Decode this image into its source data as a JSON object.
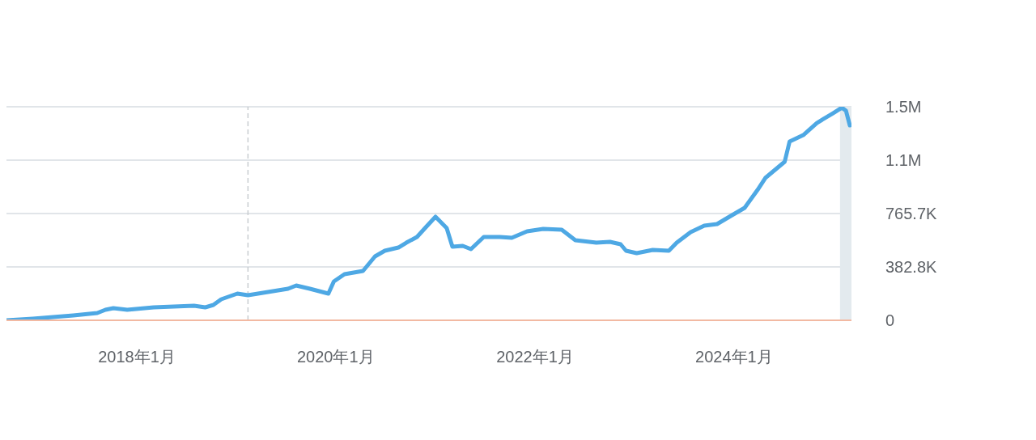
{
  "chart_data": {
    "type": "line",
    "x": [
      "2016-09-10",
      "2016-12-16",
      "2017-05-13",
      "2017-08-09",
      "2017-09-08",
      "2017-10-07",
      "2017-11-27",
      "2018-03-04",
      "2018-07-30",
      "2018-09-09",
      "2018-10-09",
      "2018-11-07",
      "2019-01-05",
      "2019-02-13",
      "2019-07-10",
      "2019-08-09",
      "2019-09-28",
      "2019-12-05",
      "2019-12-25",
      "2020-02-02",
      "2020-04-10",
      "2020-05-24",
      "2020-06-29",
      "2020-08-18",
      "2020-09-16",
      "2020-10-25",
      "2020-11-29",
      "2021-01-01",
      "2021-02-11",
      "2021-03-04",
      "2021-04-11",
      "2021-05-11",
      "2021-06-27",
      "2021-08-25",
      "2021-10-08",
      "2021-12-03",
      "2022-01-31",
      "2022-04-09",
      "2022-05-29",
      "2022-08-14",
      "2022-10-03",
      "2022-11-11",
      "2022-12-01",
      "2023-01-09",
      "2023-03-09",
      "2023-05-07",
      "2023-06-05",
      "2023-07-26",
      "2023-09-14",
      "2023-10-31",
      "2023-12-20",
      "2024-02-09",
      "2024-03-27",
      "2024-04-25",
      "2024-07-05",
      "2024-07-23",
      "2024-09-11",
      "2024-10-31",
      "2024-12-29",
      "2025-01-31",
      "2025-02-15",
      "2025-03-01"
    ],
    "series": [
      {
        "color": "#4ea8e4",
        "values": [
          0,
          11600,
          34800,
          52200,
          75400,
          87000,
          75400,
          92800,
          104400,
          92800,
          110200,
          150800,
          191400,
          179800,
          226200,
          249400,
          226200,
          191400,
          278400,
          330600,
          353800,
          458200,
          498800,
          522000,
          556800,
          597400,
          672800,
          742400,
          661200,
          527800,
          533600,
          510400,
          597400,
          597400,
          591600,
          638000,
          655400,
          649600,
          574200,
          556800,
          562600,
          545200,
          498800,
          481400,
          504600,
          498800,
          556800,
          632200,
          678600,
          690200,
          748200,
          806200,
          933800,
          1020800,
          1136800,
          1281800,
          1328200,
          1415200,
          1484800,
          1525400,
          1502200,
          1397800
        ]
      }
    ],
    "xlim": [
      "2016-09-10",
      "2025-03-07"
    ],
    "xticks": [
      {
        "value": "2018-01",
        "label": "2018年1月"
      },
      {
        "value": "2020-01",
        "label": "2020年1月"
      },
      {
        "value": "2022-01",
        "label": "2022年1月"
      },
      {
        "value": "2024-01",
        "label": "2024年1月"
      }
    ],
    "ylim": [
      0,
      1531300
    ],
    "yticks": [
      0,
      {
        "value": 382825,
        "label": "382.8K"
      },
      {
        "value": 765650,
        "label": "765.7K"
      },
      {
        "value": 1148475,
        "label": "1.1M"
      },
      {
        "value": 1531300,
        "label": "1.5M"
      }
    ],
    "grid": "y",
    "ref_lines": [
      {
        "axis": "x",
        "value": "2019-02-13",
        "color": "#c8ccd0",
        "line_style": "dashed"
      }
    ],
    "bands": [
      {
        "axis": "x",
        "from": "2025-01-24",
        "to": "2025-03-07",
        "color": "#e3eaee"
      }
    ],
    "marker": "none",
    "line_style": "solid",
    "legend": false
  }
}
